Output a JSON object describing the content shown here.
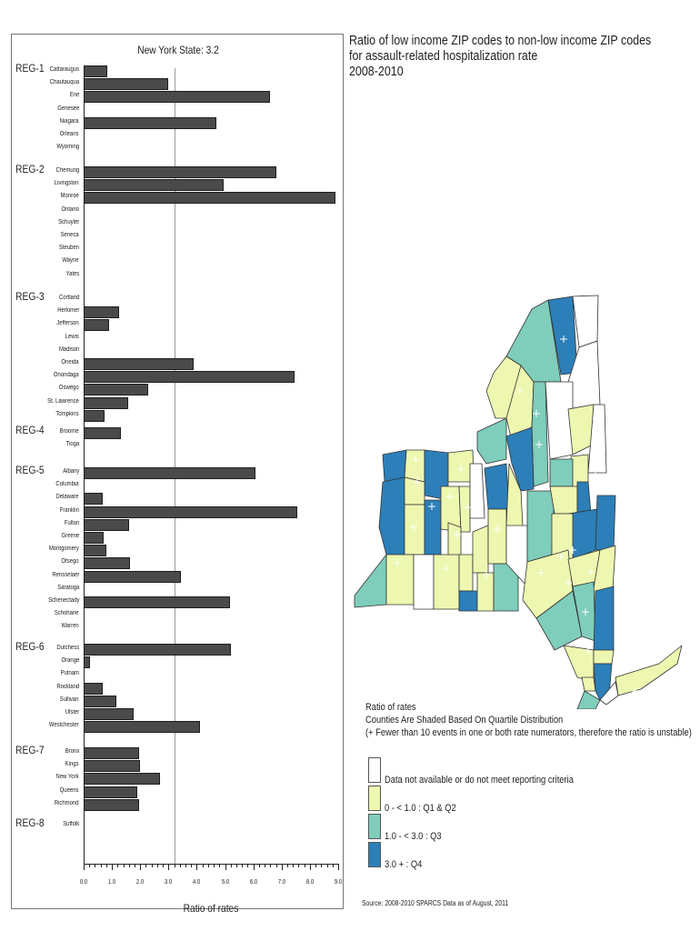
{
  "chart_data": [
    {
      "type": "bar",
      "orientation": "horizontal",
      "title": "New York State:  3.2",
      "xlabel": "Ratio of rates",
      "ylabel": "",
      "xlim": [
        0,
        9
      ],
      "x_ticks": [
        "0.0",
        "1.0",
        "2.0",
        "3.0",
        "4.0",
        "5.0",
        "6.0",
        "7.0",
        "8.0",
        "9.0"
      ],
      "reference_line": {
        "label": "New York State",
        "value": 3.2
      },
      "grid": false,
      "groups": [
        {
          "region": "REG-1",
          "counties": [
            {
              "name": "Cattaraugus",
              "value": 0.83
            },
            {
              "name": "Chautauqua",
              "value": 2.99
            },
            {
              "name": "Erie",
              "value": 6.58
            },
            {
              "name": "Genesee",
              "value": null
            },
            {
              "name": "Niagara",
              "value": 4.68
            },
            {
              "name": "Orleans",
              "value": null
            },
            {
              "name": "Wyoming",
              "value": null
            }
          ]
        },
        {
          "region": "REG-2",
          "counties": [
            {
              "name": "Chemung",
              "value": 6.8
            },
            {
              "name": "Livingston",
              "value": 4.95
            },
            {
              "name": "Monroe",
              "value": 8.9
            },
            {
              "name": "Ontario",
              "value": null
            },
            {
              "name": "Schuyler",
              "value": null
            },
            {
              "name": "Seneca",
              "value": null
            },
            {
              "name": "Steuben",
              "value": null
            },
            {
              "name": "Wayne",
              "value": null
            },
            {
              "name": "Yates",
              "value": null
            }
          ]
        },
        {
          "region": "REG-3",
          "counties": [
            {
              "name": "Cortland",
              "value": null
            },
            {
              "name": "Herkimer",
              "value": 1.25
            },
            {
              "name": "Jefferson",
              "value": 0.9
            },
            {
              "name": "Lewis",
              "value": null
            },
            {
              "name": "Madison",
              "value": null
            },
            {
              "name": "Oneida",
              "value": 3.88
            },
            {
              "name": "Onondaga",
              "value": 7.45
            },
            {
              "name": "Oswego",
              "value": 2.27
            },
            {
              "name": "St. Lawrence",
              "value": 1.58
            },
            {
              "name": "Tompkins",
              "value": 0.73
            }
          ]
        },
        {
          "region": "REG-4",
          "counties": [
            {
              "name": "Broome",
              "value": 1.32
            },
            {
              "name": "Tioga",
              "value": null
            }
          ]
        },
        {
          "region": "REG-5",
          "counties": [
            {
              "name": "Albany",
              "value": 6.09
            },
            {
              "name": "Columbia",
              "value": null
            },
            {
              "name": "Delaware",
              "value": 0.67
            },
            {
              "name": "Franklin",
              "value": 7.55
            },
            {
              "name": "Fulton",
              "value": 1.61
            },
            {
              "name": "Greene",
              "value": 0.7
            },
            {
              "name": "Montgomery",
              "value": 0.8
            },
            {
              "name": "Otsego",
              "value": 1.63
            },
            {
              "name": "Rensselaer",
              "value": 3.43
            },
            {
              "name": "Saratoga",
              "value": null
            },
            {
              "name": "Schenectady",
              "value": 5.18
            },
            {
              "name": "Schoharie",
              "value": null
            },
            {
              "name": "Warren",
              "value": null
            }
          ]
        },
        {
          "region": "REG-6",
          "counties": [
            {
              "name": "Dutchess",
              "value": 5.21
            },
            {
              "name": "Orange",
              "value": 0.22
            },
            {
              "name": "Putnam",
              "value": null
            },
            {
              "name": "Rockland",
              "value": 0.69
            },
            {
              "name": "Sullivan",
              "value": 1.15
            },
            {
              "name": "Ulster",
              "value": 1.76
            },
            {
              "name": "Westchester",
              "value": 4.12
            }
          ]
        },
        {
          "region": "REG-7",
          "counties": [
            {
              "name": "Bronx",
              "value": 1.95
            },
            {
              "name": "Kings",
              "value": 2.0
            },
            {
              "name": "New York",
              "value": 2.69
            },
            {
              "name": "Queens",
              "value": 1.91
            },
            {
              "name": "Richmond",
              "value": 1.97
            }
          ]
        },
        {
          "region": "REG-8",
          "counties": [
            {
              "name": "Suffolk",
              "value": null
            }
          ]
        }
      ]
    },
    {
      "type": "choropleth",
      "title": "Ratio of low income ZIP codes to non-low income ZIP codes for assault-related hospitalization rate 2008-2010",
      "legend": [
        {
          "label": "Data not available or do not meet reporting criteria",
          "color": "#ffffff"
        },
        {
          "label": "0 - <  1.0  : Q1 & Q2",
          "color": "#eef7b0"
        },
        {
          "label": "1.0 - <  3.0  : Q3",
          "color": "#7fcdbb"
        },
        {
          "label": "3.0 +   : Q4",
          "color": "#2c7fb8"
        }
      ]
    }
  ],
  "left_panel": {
    "title": "New York State:  3.2",
    "x_axis_title": "Ratio of rates",
    "x_ticks": [
      "0.0",
      "1.0",
      "2.0",
      "3.0",
      "4.0",
      "5.0",
      "6.0",
      "7.0",
      "8.0",
      "9.0"
    ]
  },
  "right_panel": {
    "title_lines": [
      "Ratio of low income ZIP codes to non-low income ZIP codes",
      "for assault-related hospitalization rate",
      "2008-2010"
    ],
    "legend_heading": [
      "Ratio of rates",
      "Counties Are Shaded Based On Quartile Distribution",
      "(+ Fewer than 10 events in one or both rate numerators, therefore the ratio is unstable)"
    ],
    "legend_items": [
      {
        "label": "Data not available or do not meet reporting criteria",
        "color": "#ffffff"
      },
      {
        "label": "0 - <  1.0  : Q1 & Q2",
        "color": "#eef7b0"
      },
      {
        "label": "1.0 - <  3.0  : Q3",
        "color": "#7fcdbb"
      },
      {
        "label": "3.0 +   : Q4",
        "color": "#2c7fb8"
      }
    ],
    "source": "Source: 2008-2010 SPARCS Data as of August, 2011"
  }
}
